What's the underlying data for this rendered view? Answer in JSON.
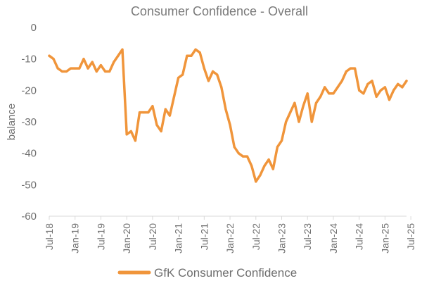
{
  "chart_data": {
    "type": "line",
    "title": "Consumer Confidence - Overall",
    "ylabel": "balance",
    "xlabel": "",
    "ylim": [
      -60,
      0
    ],
    "yticks": [
      0,
      -10,
      -20,
      -30,
      -40,
      -50,
      -60
    ],
    "xtick_labels": [
      "Jul-18",
      "Jan-19",
      "Jul-19",
      "Jan-20",
      "Jul-20",
      "Jan-21",
      "Jul-21",
      "Jan-22",
      "Jul-22",
      "Jan-23",
      "Jul-23",
      "Jan-24",
      "Jul-24",
      "Jan-25",
      "Jul-25"
    ],
    "grid": false,
    "legend_position": "bottom",
    "series": [
      {
        "name": "GfK Consumer Confidence",
        "color": "#f0953b",
        "x_start": "Jul-18",
        "x_step": "1 month",
        "values": [
          -9,
          -10,
          -13,
          -14,
          -14,
          -13,
          -13,
          -13,
          -10,
          -13,
          -11,
          -14,
          -12,
          -14,
          -14,
          -11,
          -9,
          -7,
          -34,
          -33,
          -36,
          -27,
          -27,
          -27,
          -25,
          -31,
          -33,
          -26,
          -28,
          -22,
          -16,
          -15,
          -9,
          -9,
          -7,
          -8,
          -13,
          -17,
          -14,
          -15,
          -19,
          -26,
          -31,
          -38,
          -40,
          -41,
          -41,
          -44,
          -49,
          -47,
          -44,
          -42,
          -45,
          -38,
          -36,
          -30,
          -27,
          -24,
          -30,
          -25,
          -21,
          -30,
          -24,
          -22,
          -19,
          -21,
          -21,
          -19,
          -17,
          -14,
          -13,
          -13,
          -20,
          -21,
          -18,
          -17,
          -22,
          -20,
          -19,
          -23,
          -20,
          -18,
          -19,
          -17
        ]
      }
    ]
  }
}
